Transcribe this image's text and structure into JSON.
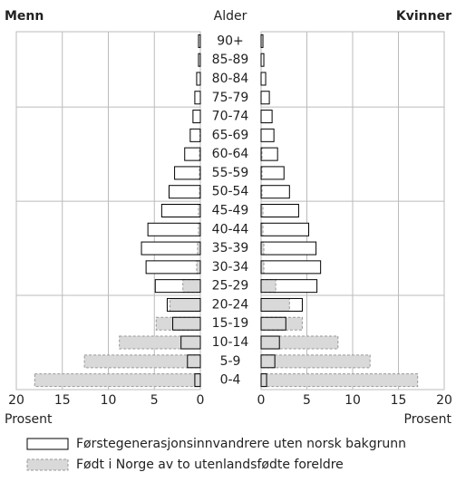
{
  "chart_data": {
    "type": "pyramid",
    "ylabel": "Alder",
    "xlabel": "Prosent",
    "categories": [
      "0-4",
      "5-9",
      "10-14",
      "15-19",
      "20-24",
      "25-29",
      "30-34",
      "35-39",
      "40-44",
      "45-49",
      "50-54",
      "55-59",
      "60-64",
      "65-69",
      "70-74",
      "75-79",
      "80-84",
      "85-89",
      "90+"
    ],
    "xlim": [
      0,
      20
    ],
    "xticks": [
      0,
      5,
      10,
      15,
      20
    ],
    "grid": true,
    "legend": [
      {
        "name": "Førstegenerasjonsinnvandrere uten norsk bakgrunn",
        "color": "#ffffff"
      },
      {
        "name": "Født i Norge av to utenlandsfødte foreldre",
        "color": "#d9d9d9"
      }
    ],
    "panels": [
      {
        "label": "Menn",
        "side": "left",
        "values": [
          [
            0.6,
            1.4,
            2.1,
            3.0,
            3.6,
            4.9,
            5.9,
            6.4,
            5.7,
            4.2,
            3.4,
            2.8,
            1.7,
            1.1,
            0.8,
            0.6,
            0.4,
            0.2,
            0.2
          ],
          [
            18.0,
            12.6,
            8.8,
            4.8,
            3.3,
            1.9,
            0.4,
            0.3,
            0.2,
            0.2,
            0.1,
            0.1,
            0.1,
            0.05,
            0,
            0,
            0,
            0,
            0
          ]
        ]
      },
      {
        "label": "Kvinner",
        "side": "right",
        "values": [
          [
            0.6,
            1.5,
            2.0,
            2.7,
            4.5,
            6.1,
            6.5,
            6.0,
            5.2,
            4.1,
            3.1,
            2.5,
            1.8,
            1.4,
            1.2,
            0.9,
            0.5,
            0.3,
            0.2
          ],
          [
            17.1,
            11.9,
            8.4,
            4.5,
            3.1,
            1.6,
            0.3,
            0.3,
            0.2,
            0.2,
            0.1,
            0.1,
            0.1,
            0,
            0,
            0,
            0,
            0,
            0
          ]
        ]
      }
    ]
  }
}
